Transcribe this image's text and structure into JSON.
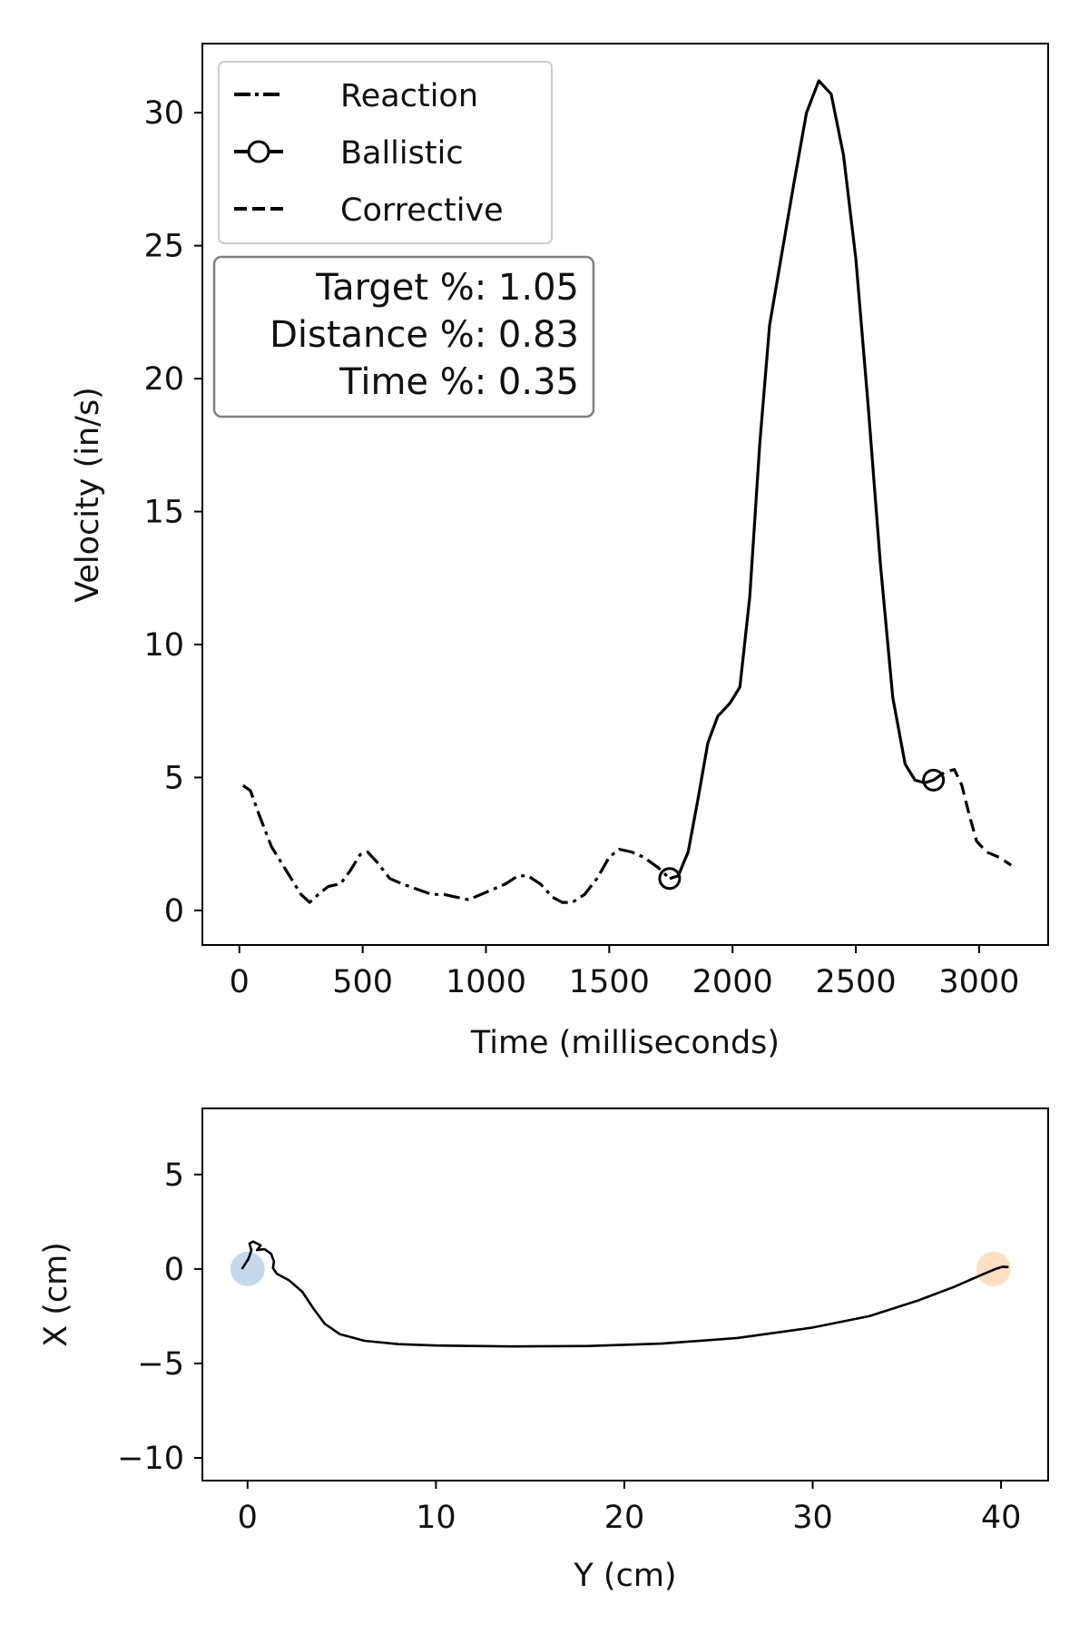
{
  "chart_data": [
    {
      "type": "line",
      "xlabel": "Time (milliseconds)",
      "ylabel": "Velocity (in/s)",
      "xlim": [
        -150,
        3280
      ],
      "ylim": [
        -1.3,
        32.6
      ],
      "xticks": [
        0,
        500,
        1000,
        1500,
        2000,
        2500,
        3000
      ],
      "yticks": [
        0,
        5,
        10,
        15,
        20,
        25,
        30
      ],
      "xtick_labels": [
        "0",
        "500",
        "1000",
        "1500",
        "2000",
        "2500",
        "3000"
      ],
      "ytick_labels": [
        "0",
        "5",
        "10",
        "15",
        "20",
        "25",
        "30"
      ],
      "grid": false,
      "legend_position": "top-left",
      "legend": [
        {
          "label": "Reaction",
          "style": "dashdot"
        },
        {
          "label": "Ballistic",
          "style": "solid-circle"
        },
        {
          "label": "Corrective",
          "style": "dashed"
        }
      ],
      "annotation": [
        "Target %: 1.05",
        "Distance %: 0.83",
        "Time %: 0.35"
      ],
      "series": [
        {
          "name": "Reaction",
          "style": "dashdot",
          "points": [
            [
              15,
              4.7
            ],
            [
              45,
              4.5
            ],
            [
              80,
              3.6
            ],
            [
              130,
              2.4
            ],
            [
              190,
              1.5
            ],
            [
              250,
              0.6
            ],
            [
              285,
              0.3
            ],
            [
              320,
              0.6
            ],
            [
              360,
              0.9
            ],
            [
              410,
              1.0
            ],
            [
              450,
              1.5
            ],
            [
              490,
              2.1
            ],
            [
              520,
              2.2
            ],
            [
              560,
              1.8
            ],
            [
              610,
              1.2
            ],
            [
              660,
              1.0
            ],
            [
              720,
              0.8
            ],
            [
              780,
              0.6
            ],
            [
              830,
              0.6
            ],
            [
              880,
              0.5
            ],
            [
              930,
              0.4
            ],
            [
              980,
              0.6
            ],
            [
              1030,
              0.8
            ],
            [
              1080,
              1.0
            ],
            [
              1130,
              1.3
            ],
            [
              1170,
              1.3
            ],
            [
              1220,
              1.0
            ],
            [
              1270,
              0.5
            ],
            [
              1310,
              0.3
            ],
            [
              1350,
              0.3
            ],
            [
              1400,
              0.6
            ],
            [
              1450,
              1.2
            ],
            [
              1500,
              2.0
            ],
            [
              1540,
              2.3
            ],
            [
              1590,
              2.2
            ],
            [
              1640,
              2.0
            ],
            [
              1700,
              1.6
            ],
            [
              1745,
              1.2
            ]
          ]
        },
        {
          "name": "Ballistic",
          "style": "solid",
          "marker_points": [
            [
              1745,
              1.2
            ],
            [
              2815,
              4.9
            ]
          ],
          "points": [
            [
              1745,
              1.2
            ],
            [
              1780,
              1.3
            ],
            [
              1820,
              2.2
            ],
            [
              1860,
              4.2
            ],
            [
              1900,
              6.3
            ],
            [
              1940,
              7.3
            ],
            [
              1990,
              7.8
            ],
            [
              2030,
              8.4
            ],
            [
              2070,
              11.8
            ],
            [
              2110,
              17.5
            ],
            [
              2150,
              22.0
            ],
            [
              2200,
              24.7
            ],
            [
              2250,
              27.4
            ],
            [
              2300,
              30.0
            ],
            [
              2350,
              31.2
            ],
            [
              2400,
              30.7
            ],
            [
              2450,
              28.4
            ],
            [
              2500,
              24.5
            ],
            [
              2550,
              19.0
            ],
            [
              2600,
              13.0
            ],
            [
              2650,
              8.0
            ],
            [
              2700,
              5.5
            ],
            [
              2740,
              4.9
            ],
            [
              2780,
              4.8
            ],
            [
              2815,
              4.9
            ]
          ]
        },
        {
          "name": "Corrective",
          "style": "dashed",
          "points": [
            [
              2815,
              4.9
            ],
            [
              2860,
              5.2
            ],
            [
              2900,
              5.3
            ],
            [
              2930,
              4.7
            ],
            [
              2960,
              3.6
            ],
            [
              2990,
              2.6
            ],
            [
              3030,
              2.2
            ],
            [
              3080,
              2.0
            ],
            [
              3130,
              1.7
            ]
          ]
        }
      ]
    },
    {
      "type": "line",
      "xlabel": "Y (cm)",
      "ylabel": "X (cm)",
      "xlim": [
        -2.4,
        42.5
      ],
      "ylim": [
        -11.2,
        8.5
      ],
      "xticks": [
        0,
        10,
        20,
        30,
        40
      ],
      "yticks": [
        5,
        0,
        -5,
        -10
      ],
      "xtick_labels": [
        "0",
        "10",
        "20",
        "30",
        "40"
      ],
      "ytick_labels": [
        "5",
        "0",
        "−5",
        "−10"
      ],
      "grid": false,
      "start_marker": {
        "x": 0,
        "y": 0,
        "color": "#c6d9ec"
      },
      "end_marker": {
        "x": 39.6,
        "y": 0,
        "color": "#fddfc4"
      },
      "series": [
        {
          "style": "solid",
          "points": [
            [
              -0.3,
              0
            ],
            [
              0.05,
              0.55
            ],
            [
              0.2,
              1.0
            ],
            [
              0.1,
              1.35
            ],
            [
              0.3,
              1.45
            ],
            [
              0.7,
              1.25
            ],
            [
              0.5,
              1.0
            ],
            [
              0.9,
              1.05
            ],
            [
              1.25,
              0.8
            ],
            [
              1.4,
              0.4
            ],
            [
              1.35,
              0.05
            ],
            [
              1.55,
              -0.25
            ],
            [
              2.2,
              -0.6
            ],
            [
              2.9,
              -1.2
            ],
            [
              3.5,
              -2.1
            ],
            [
              4.1,
              -2.9
            ],
            [
              4.9,
              -3.45
            ],
            [
              6.2,
              -3.8
            ],
            [
              8.0,
              -3.98
            ],
            [
              10.0,
              -4.05
            ],
            [
              14.0,
              -4.1
            ],
            [
              18.0,
              -4.08
            ],
            [
              22.0,
              -3.95
            ],
            [
              26.0,
              -3.65
            ],
            [
              30.0,
              -3.1
            ],
            [
              33.0,
              -2.5
            ],
            [
              35.5,
              -1.7
            ],
            [
              37.5,
              -0.95
            ],
            [
              39.0,
              -0.3
            ],
            [
              39.7,
              0.0
            ],
            [
              40.1,
              0.12
            ],
            [
              40.4,
              0.1
            ]
          ]
        }
      ]
    }
  ]
}
